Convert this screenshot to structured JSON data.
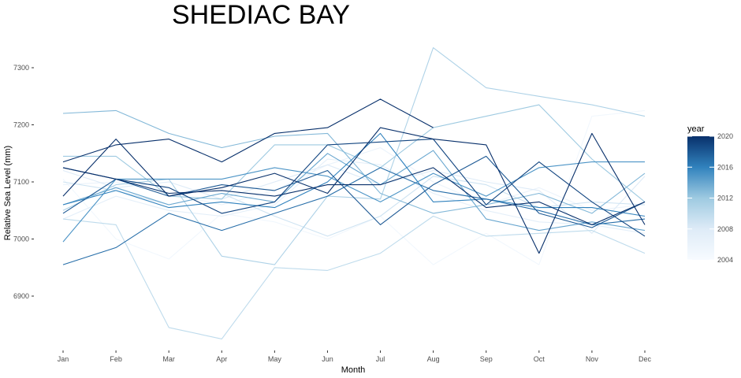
{
  "chart_data": {
    "type": "line",
    "title": "SHEDIAC BAY",
    "xlabel": "Month",
    "ylabel": "Relative Sea Level (mm)",
    "categories": [
      "Jan",
      "Feb",
      "Mar",
      "Apr",
      "May",
      "Jun",
      "Jul",
      "Aug",
      "Sep",
      "Oct",
      "Nov",
      "Dec"
    ],
    "y_ticks": [
      6900,
      7000,
      7100,
      7200,
      7300
    ],
    "ylim": [
      6820,
      7345
    ],
    "grid": false,
    "legend": {
      "title": "year",
      "position": "right",
      "ticks": [
        2004,
        2008,
        2012,
        2016,
        2020
      ],
      "range": [
        2004,
        2020
      ],
      "color_low": "#f7fbff",
      "color_high": "#08306b"
    },
    "series": [
      {
        "year": 2005,
        "values": [
          7105,
          7000,
          6965,
          7045,
          7030,
          7000,
          7040,
          6955,
          7010,
          6955,
          7215,
          7225
        ]
      },
      {
        "year": 2006,
        "values": [
          7095,
          7100,
          7080,
          7060,
          7085,
          7130,
          7160,
          7100,
          7060,
          7090,
          7050,
          7060
        ]
      },
      {
        "year": 2007,
        "values": [
          7035,
          7075,
          7050,
          7040,
          7060,
          7140,
          7130,
          7080,
          7050,
          7030,
          7025,
          7010
        ]
      },
      {
        "year": 2008,
        "values": [
          7120,
          7090,
          7100,
          7070,
          7100,
          7130,
          7095,
          7120,
          7100,
          7085,
          7010,
          7110
        ]
      },
      {
        "year": 2009,
        "values": [
          7100,
          7085,
          7060,
          7080,
          7040,
          7005,
          7040,
          7110,
          7095,
          7055,
          7065,
          7060
        ]
      },
      {
        "year": 2010,
        "values": [
          7035,
          7025,
          6845,
          6825,
          6950,
          6945,
          6975,
          7040,
          7005,
          7010,
          7015,
          6975
        ]
      },
      {
        "year": 2011,
        "values": [
          7050,
          7095,
          7105,
          6970,
          6955,
          7075,
          7070,
          7335,
          7265,
          7250,
          7235,
          7215
        ]
      },
      {
        "year": 2012,
        "values": [
          7145,
          7145,
          7075,
          7070,
          7165,
          7165,
          7125,
          7195,
          7215,
          7235,
          7140,
          7065
        ]
      },
      {
        "year": 2013,
        "values": [
          7220,
          7225,
          7185,
          7160,
          7180,
          7185,
          7080,
          7045,
          7060,
          7080,
          7045,
          7115
        ]
      },
      {
        "year": 2014,
        "values": [
          7060,
          7090,
          7060,
          7080,
          7065,
          7150,
          7095,
          7155,
          7035,
          7015,
          7030,
          7015
        ]
      },
      {
        "year": 2015,
        "values": [
          6995,
          7105,
          7105,
          7105,
          7125,
          7110,
          7065,
          7115,
          7075,
          7125,
          7135,
          7135
        ]
      },
      {
        "year": 2016,
        "values": [
          7060,
          7085,
          7055,
          7065,
          7055,
          7100,
          7185,
          7065,
          7070,
          7055,
          7055,
          7040
        ]
      },
      {
        "year": 2017,
        "values": [
          6955,
          6985,
          7045,
          7015,
          7045,
          7075,
          7125,
          7085,
          7070,
          7050,
          7025,
          7035
        ]
      },
      {
        "year": 2018,
        "values": [
          7045,
          7105,
          7075,
          7095,
          7085,
          7120,
          7025,
          7095,
          7145,
          7045,
          7020,
          7065
        ]
      },
      {
        "year": 2019,
        "values": [
          7125,
          7105,
          7090,
          7045,
          7065,
          7165,
          7170,
          7175,
          7060,
          7135,
          7065,
          7005
        ]
      },
      {
        "year": 2020,
        "values": [
          7075,
          7175,
          7075,
          7090,
          7115,
          7080,
          7195,
          7175,
          7165,
          6975,
          7185,
          7025
        ]
      },
      {
        "year": 2021,
        "values": [
          7135,
          7165,
          7175,
          7135,
          7185,
          7195,
          7245,
          7195,
          null,
          null,
          null,
          null
        ]
      },
      {
        "year": 2022,
        "values": [
          7125,
          7105,
          7080,
          7085,
          7075,
          7095,
          7095,
          7125,
          7055,
          7065,
          7025,
          7065
        ]
      }
    ]
  }
}
